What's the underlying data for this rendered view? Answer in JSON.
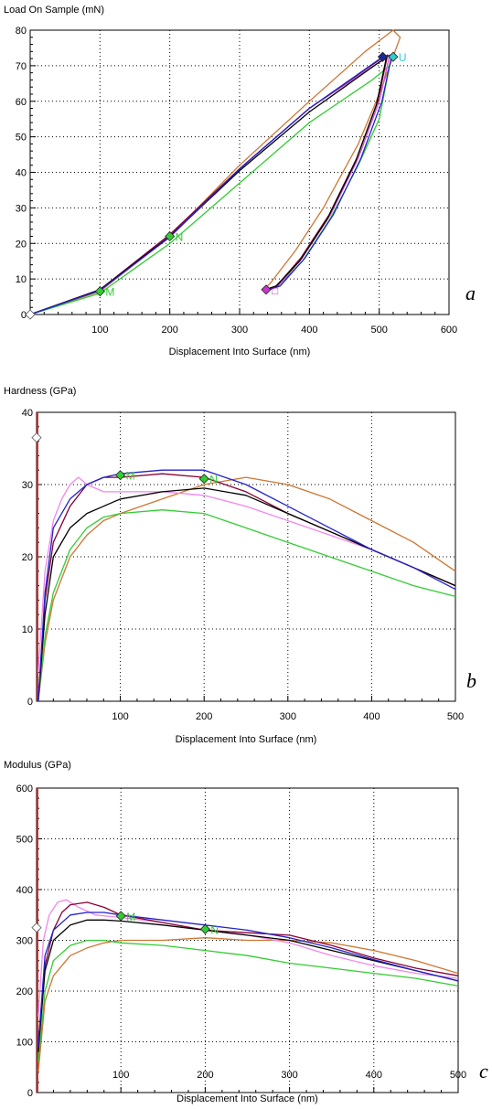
{
  "panels": [
    {
      "id": "a",
      "panel_label": "a",
      "chart_data": {
        "type": "line",
        "ylabel": "Load On Sample (mN)",
        "xlabel": "Displacement Into Surface (nm)",
        "xlim": [
          0,
          600
        ],
        "ylim": [
          0,
          80
        ],
        "xticks": [
          100,
          200,
          300,
          400,
          500,
          600
        ],
        "yticks": [
          0,
          10,
          20,
          30,
          40,
          50,
          60,
          70,
          80
        ],
        "grid": true,
        "series": [
          {
            "color": "#cc7733",
            "x": [
              0,
              100,
              200,
              300,
              400,
              480,
              520,
              530,
              500,
              470,
              420,
              380,
              345,
              335
            ],
            "y": [
              0,
              6.5,
              22,
              42,
              60,
              74,
              80,
              78,
              62,
              48,
              30,
              18,
              9,
              7
            ]
          },
          {
            "color": "#33cc33",
            "x": [
              0,
              100,
              200,
              300,
              400,
              490,
              515,
              512,
              500,
              470,
              430,
              390,
              355,
              345
            ],
            "y": [
              0,
              6,
              20,
              37,
              54,
              66,
              70,
              67,
              55,
              42,
              27,
              15,
              8,
              7
            ]
          },
          {
            "color": "#cc55cc",
            "x": [
              0,
              100,
              200,
              300,
              400,
              500,
              515,
              500,
              470,
              430,
              390,
              355,
              340
            ],
            "y": [
              0,
              7,
              22,
              41,
              58,
              71,
              73,
              60,
              44,
              28,
              16,
              8,
              7
            ]
          },
          {
            "color": "#880033",
            "x": [
              0,
              100,
              200,
              300,
              400,
              503,
              512,
              498,
              468,
              428,
              388,
              353,
              338
            ],
            "y": [
              0,
              7,
              22.5,
              41,
              58,
              72,
              73,
              60,
              44,
              28,
              16,
              8,
              7
            ]
          },
          {
            "color": "#000000",
            "x": [
              0,
              100,
              200,
              300,
              400,
              500,
              510,
              496,
              466,
              426,
              386,
              352,
              337
            ],
            "y": [
              0,
              7,
              22,
              40.5,
              57,
              71,
              72,
              59,
              43,
              27,
              15,
              8,
              7
            ]
          },
          {
            "color": "#2222cc",
            "x": [
              0,
              100,
              200,
              300,
              400,
              505,
              518,
              504,
              474,
              434,
              394,
              358,
              342
            ],
            "y": [
              0,
              6.8,
              21.8,
              41,
              58,
              72.5,
              73,
              60,
              44,
              28,
              16,
              8,
              7
            ]
          }
        ],
        "markers": [
          {
            "x": 0,
            "y": 0,
            "color": "#ffffff",
            "label": ""
          },
          {
            "x": 100,
            "y": 6.5,
            "color": "#33cc33",
            "label": "M"
          },
          {
            "x": 200,
            "y": 22,
            "color": "#33cc33",
            "label": "N"
          },
          {
            "x": 505,
            "y": 72.5,
            "color": "#1a2a9a",
            "label": ""
          },
          {
            "x": 520,
            "y": 72.5,
            "color": "#33cccc",
            "label": "U"
          },
          {
            "x": 338,
            "y": 7,
            "color": "#cc33cc",
            "label": "□"
          }
        ]
      }
    },
    {
      "id": "b",
      "panel_label": "b",
      "chart_data": {
        "type": "line",
        "ylabel": "Hardness (GPa)",
        "xlabel": "Displacement Into Surface (nm)",
        "xlim": [
          0,
          500
        ],
        "ylim": [
          0,
          40
        ],
        "xticks": [
          100,
          200,
          300,
          400,
          500
        ],
        "yticks": [
          0,
          10,
          20,
          30,
          40
        ],
        "grid": true,
        "series": [
          {
            "color": "#cc7733",
            "x": [
              2,
              10,
              20,
              40,
              60,
              80,
              100,
              150,
              200,
              250,
              300,
              350,
              400,
              450,
              500
            ],
            "y": [
              0,
              8,
              14,
              20,
              23,
              25,
              26,
              28,
              30,
              31,
              30,
              28,
              25,
              22,
              18
            ]
          },
          {
            "color": "#33cc33",
            "x": [
              2,
              10,
              20,
              40,
              60,
              80,
              100,
              150,
              200,
              250,
              300,
              350,
              400,
              450,
              500
            ],
            "y": [
              0,
              9,
              15,
              21,
              24,
              25.5,
              26,
              26.5,
              26,
              24,
              22,
              20,
              18,
              16,
              14.5
            ]
          },
          {
            "color": "#ee88ee",
            "x": [
              2,
              10,
              20,
              30,
              40,
              50,
              60,
              80,
              100,
              150,
              200,
              250,
              300,
              350,
              400,
              450,
              500
            ],
            "y": [
              4,
              18,
              25,
              28,
              30,
              31,
              30,
              29,
              29,
              29,
              28.5,
              27,
              25,
              23,
              21,
              18.5,
              16
            ]
          },
          {
            "color": "#880033",
            "x": [
              2,
              10,
              20,
              40,
              60,
              80,
              100,
              150,
              200,
              250,
              300,
              350,
              400,
              450,
              500
            ],
            "y": [
              0,
              14,
              22,
              27,
              30,
              31,
              31,
              31.5,
              31,
              29,
              26,
              23.5,
              21,
              18.5,
              16
            ]
          },
          {
            "color": "#000000",
            "x": [
              2,
              10,
              20,
              40,
              60,
              80,
              100,
              150,
              200,
              250,
              300,
              350,
              400,
              450,
              500
            ],
            "y": [
              0,
              12,
              20,
              24,
              26,
              27,
              28,
              29,
              29.5,
              28.5,
              26,
              23.5,
              21,
              18.5,
              16
            ]
          },
          {
            "color": "#2222cc",
            "x": [
              2,
              10,
              20,
              40,
              60,
              80,
              100,
              150,
              200,
              250,
              300,
              350,
              400,
              450,
              500
            ],
            "y": [
              0,
              15,
              24,
              28,
              30,
              31,
              31.5,
              32,
              32,
              30,
              27,
              24,
              21,
              18.5,
              15.5
            ]
          }
        ],
        "markers": [
          {
            "x": 0,
            "y": 36.5,
            "color": "#ffffff",
            "label": ""
          },
          {
            "x": 100,
            "y": 31.3,
            "color": "#33cc33",
            "label": "M"
          },
          {
            "x": 200,
            "y": 30.8,
            "color": "#33cc33",
            "label": "N"
          }
        ],
        "spike": {
          "x": 1,
          "color": "#cc2222"
        }
      }
    },
    {
      "id": "c",
      "panel_label": "c",
      "chart_data": {
        "type": "line",
        "ylabel": "Modulus (GPa)",
        "xlabel": "Displacement Into Surface (nm)",
        "xlim": [
          0,
          500
        ],
        "ylim": [
          0,
          600
        ],
        "xticks": [
          100,
          200,
          300,
          400,
          500
        ],
        "yticks": [
          0,
          100,
          200,
          300,
          400,
          500,
          600
        ],
        "grid": true,
        "series": [
          {
            "color": "#cc7733",
            "x": [
              2,
              10,
              20,
              40,
              60,
              80,
              100,
              150,
              200,
              250,
              300,
              350,
              400,
              450,
              500
            ],
            "y": [
              40,
              180,
              230,
              270,
              285,
              295,
              300,
              300,
              305,
              300,
              300,
              295,
              280,
              260,
              235
            ]
          },
          {
            "color": "#33cc33",
            "x": [
              2,
              10,
              20,
              40,
              60,
              80,
              100,
              150,
              200,
              250,
              300,
              350,
              400,
              450,
              500
            ],
            "y": [
              60,
              200,
              260,
              290,
              300,
              300,
              295,
              290,
              280,
              270,
              255,
              245,
              235,
              225,
              210
            ]
          },
          {
            "color": "#ee88ee",
            "x": [
              2,
              8,
              15,
              25,
              35,
              50,
              70,
              100,
              150,
              200,
              250,
              300,
              350,
              400,
              450,
              500
            ],
            "y": [
              150,
              300,
              350,
              375,
              380,
              365,
              350,
              345,
              335,
              320,
              310,
              295,
              270,
              250,
              235,
              225
            ]
          },
          {
            "color": "#880033",
            "x": [
              2,
              10,
              20,
              30,
              40,
              60,
              80,
              100,
              150,
              200,
              250,
              300,
              350,
              400,
              450,
              500
            ],
            "y": [
              100,
              250,
              320,
              355,
              370,
              375,
              365,
              350,
              335,
              320,
              315,
              310,
              290,
              265,
              245,
              230
            ]
          },
          {
            "color": "#000000",
            "x": [
              2,
              10,
              20,
              40,
              60,
              80,
              100,
              150,
              200,
              250,
              300,
              350,
              400,
              450,
              500
            ],
            "y": [
              80,
              240,
              300,
              330,
              340,
              340,
              338,
              330,
              320,
              310,
              300,
              280,
              260,
              240,
              220
            ]
          },
          {
            "color": "#2222cc",
            "x": [
              2,
              10,
              20,
              40,
              60,
              80,
              100,
              150,
              200,
              250,
              300,
              350,
              400,
              450,
              500
            ],
            "y": [
              90,
              270,
              320,
              350,
              355,
              355,
              350,
              340,
              330,
              320,
              305,
              285,
              262,
              240,
              220
            ]
          }
        ],
        "markers": [
          {
            "x": 0,
            "y": 325,
            "color": "#ffffff",
            "label": ""
          },
          {
            "x": 100,
            "y": 348,
            "color": "#33cc33",
            "label": "M"
          },
          {
            "x": 200,
            "y": 322,
            "color": "#33cc33",
            "label": "N"
          }
        ],
        "spike": {
          "x": 1,
          "color": "#cc2222"
        }
      }
    }
  ]
}
